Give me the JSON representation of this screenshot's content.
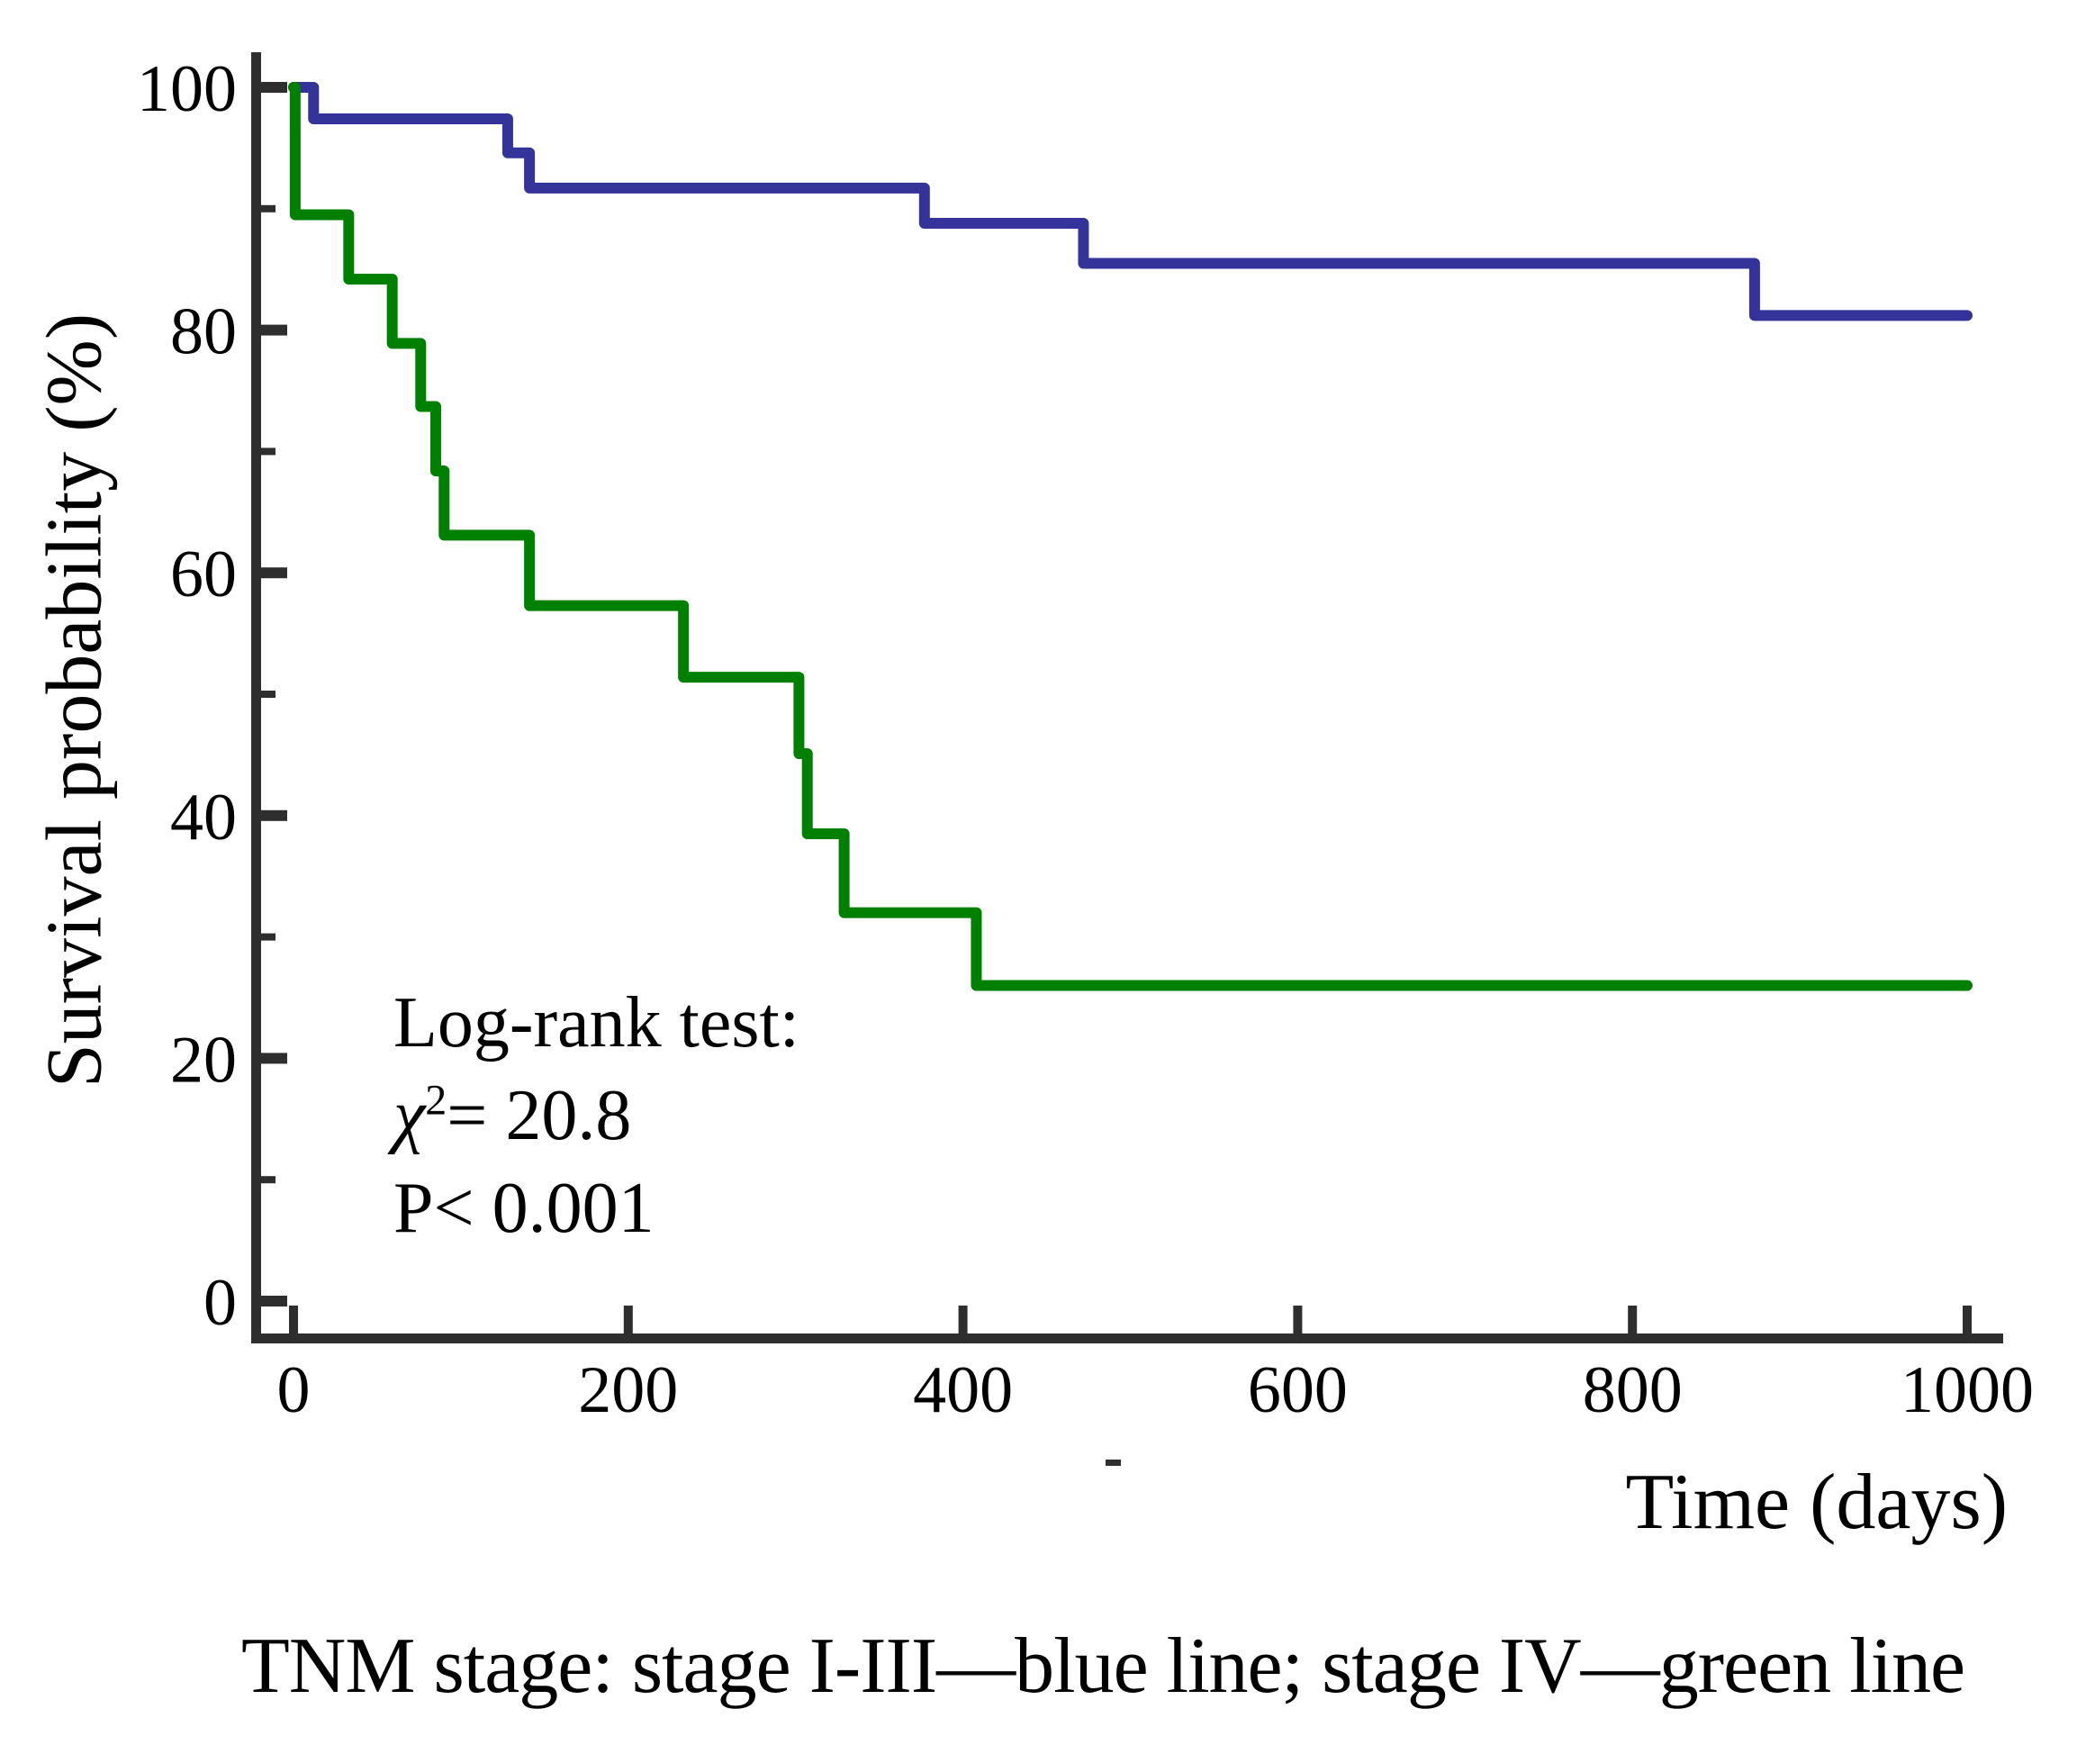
{
  "caption": "TNM stage: stage I-III—blue line; stage IV—green line",
  "annotation": {
    "line1": "Log-rank test:",
    "chi": "χ",
    "chi_sup": "2",
    "chi_rest": "= 20.8",
    "line3": "P< 0.001"
  },
  "colors": {
    "axis": "#2e2e2e",
    "text": "#000000",
    "stage_1_3_blue": "#333399",
    "stage_4_green": "#008000"
  },
  "chart_data": {
    "type": "line",
    "subtype": "kaplan-meier-step",
    "title": "",
    "xlabel": "Time (days)",
    "ylabel": "Survival probability (%)",
    "xlim": [
      0,
      1000
    ],
    "ylim": [
      0,
      100
    ],
    "x_ticks_major": [
      0,
      200,
      400,
      600,
      800,
      1000
    ],
    "y_ticks_major": [
      0,
      20,
      40,
      60,
      80,
      100
    ],
    "y_ticks_minor": [
      10,
      30,
      50,
      70,
      90
    ],
    "grid": false,
    "legend_position": "none (groups identified in caption)",
    "stats_annotation": "Log-rank test: chi-square = 20.8, P < 0.001",
    "series": [
      {
        "name": "TNM stage I-III",
        "color": "#333399",
        "steps": [
          {
            "t": 0,
            "s": 100
          },
          {
            "t": 12,
            "s": 97.4
          },
          {
            "t": 128,
            "s": 94.6
          },
          {
            "t": 141,
            "s": 91.7
          },
          {
            "t": 377,
            "s": 88.8
          },
          {
            "t": 472,
            "s": 85.5
          },
          {
            "t": 873,
            "s": 81.2
          }
        ],
        "end_t": 1000
      },
      {
        "name": "TNM stage IV",
        "color": "#008000",
        "steps": [
          {
            "t": 0,
            "s": 100
          },
          {
            "t": 1,
            "s": 89.5
          },
          {
            "t": 33,
            "s": 84.2
          },
          {
            "t": 59,
            "s": 78.9
          },
          {
            "t": 76,
            "s": 73.7
          },
          {
            "t": 85,
            "s": 68.4
          },
          {
            "t": 90,
            "s": 63.1
          },
          {
            "t": 141,
            "s": 57.3
          },
          {
            "t": 233,
            "s": 51.4
          },
          {
            "t": 302,
            "s": 45.1
          },
          {
            "t": 307,
            "s": 38.5
          },
          {
            "t": 329,
            "s": 32.0
          },
          {
            "t": 408,
            "s": 26.0
          }
        ],
        "end_t": 1000
      }
    ]
  }
}
